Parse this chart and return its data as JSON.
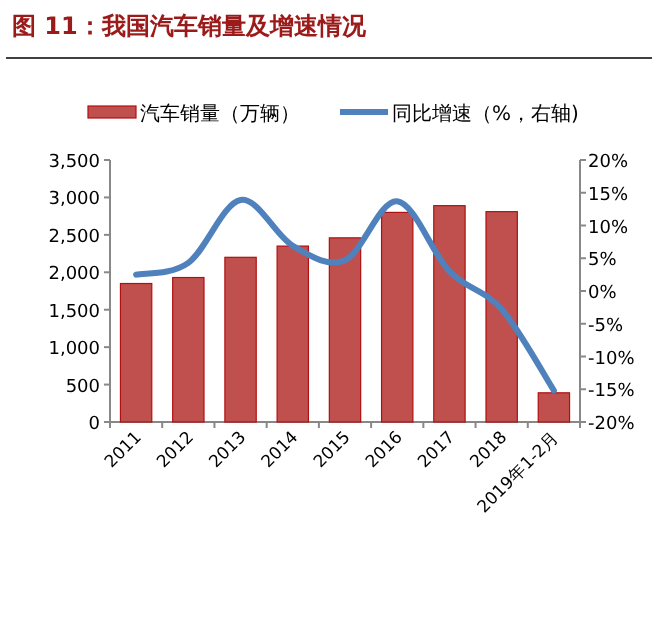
{
  "chart_data": {
    "type": "bar",
    "title": "图 11：我国汽车销量及增速情况",
    "categories": [
      "2011",
      "2012",
      "2013",
      "2014",
      "2015",
      "2016",
      "2017",
      "2018",
      "2019年1-2月"
    ],
    "series": [
      {
        "name": "汽车销量（万辆）",
        "color": "#c0504d",
        "values": [
          1850,
          1930,
          2200,
          2350,
          2460,
          2800,
          2890,
          2810,
          390
        ]
      },
      {
        "name": "同比增速（%，右轴)",
        "type": "line",
        "axis": "y2",
        "color": "#4f81bd",
        "values": [
          2.5,
          4.3,
          13.9,
          6.9,
          4.7,
          13.7,
          3.0,
          -2.8,
          -15.2
        ]
      }
    ],
    "ylim": [
      0,
      3500
    ],
    "yticks": [
      {
        "value": 0,
        "label": "0"
      },
      {
        "value": 500,
        "label": "500"
      },
      {
        "value": 1000,
        "label": "1,000"
      },
      {
        "value": 1500,
        "label": "1,500"
      },
      {
        "value": 2000,
        "label": "2,000"
      },
      {
        "value": 2500,
        "label": "2,500"
      },
      {
        "value": 3000,
        "label": "3,000"
      },
      {
        "value": 3500,
        "label": "3,500"
      }
    ],
    "y2lim": [
      -20,
      20
    ],
    "y2ticks": [
      {
        "value": -20,
        "label": "-20%"
      },
      {
        "value": -15,
        "label": "-15%"
      },
      {
        "value": -10,
        "label": "-10%"
      },
      {
        "value": -5,
        "label": "-5%"
      },
      {
        "value": 0,
        "label": "0%"
      },
      {
        "value": 5,
        "label": "5%"
      },
      {
        "value": 10,
        "label": "10%"
      },
      {
        "value": 15,
        "label": "15%"
      },
      {
        "value": 20,
        "label": "20%"
      }
    ],
    "grid": false,
    "legend": "top"
  }
}
